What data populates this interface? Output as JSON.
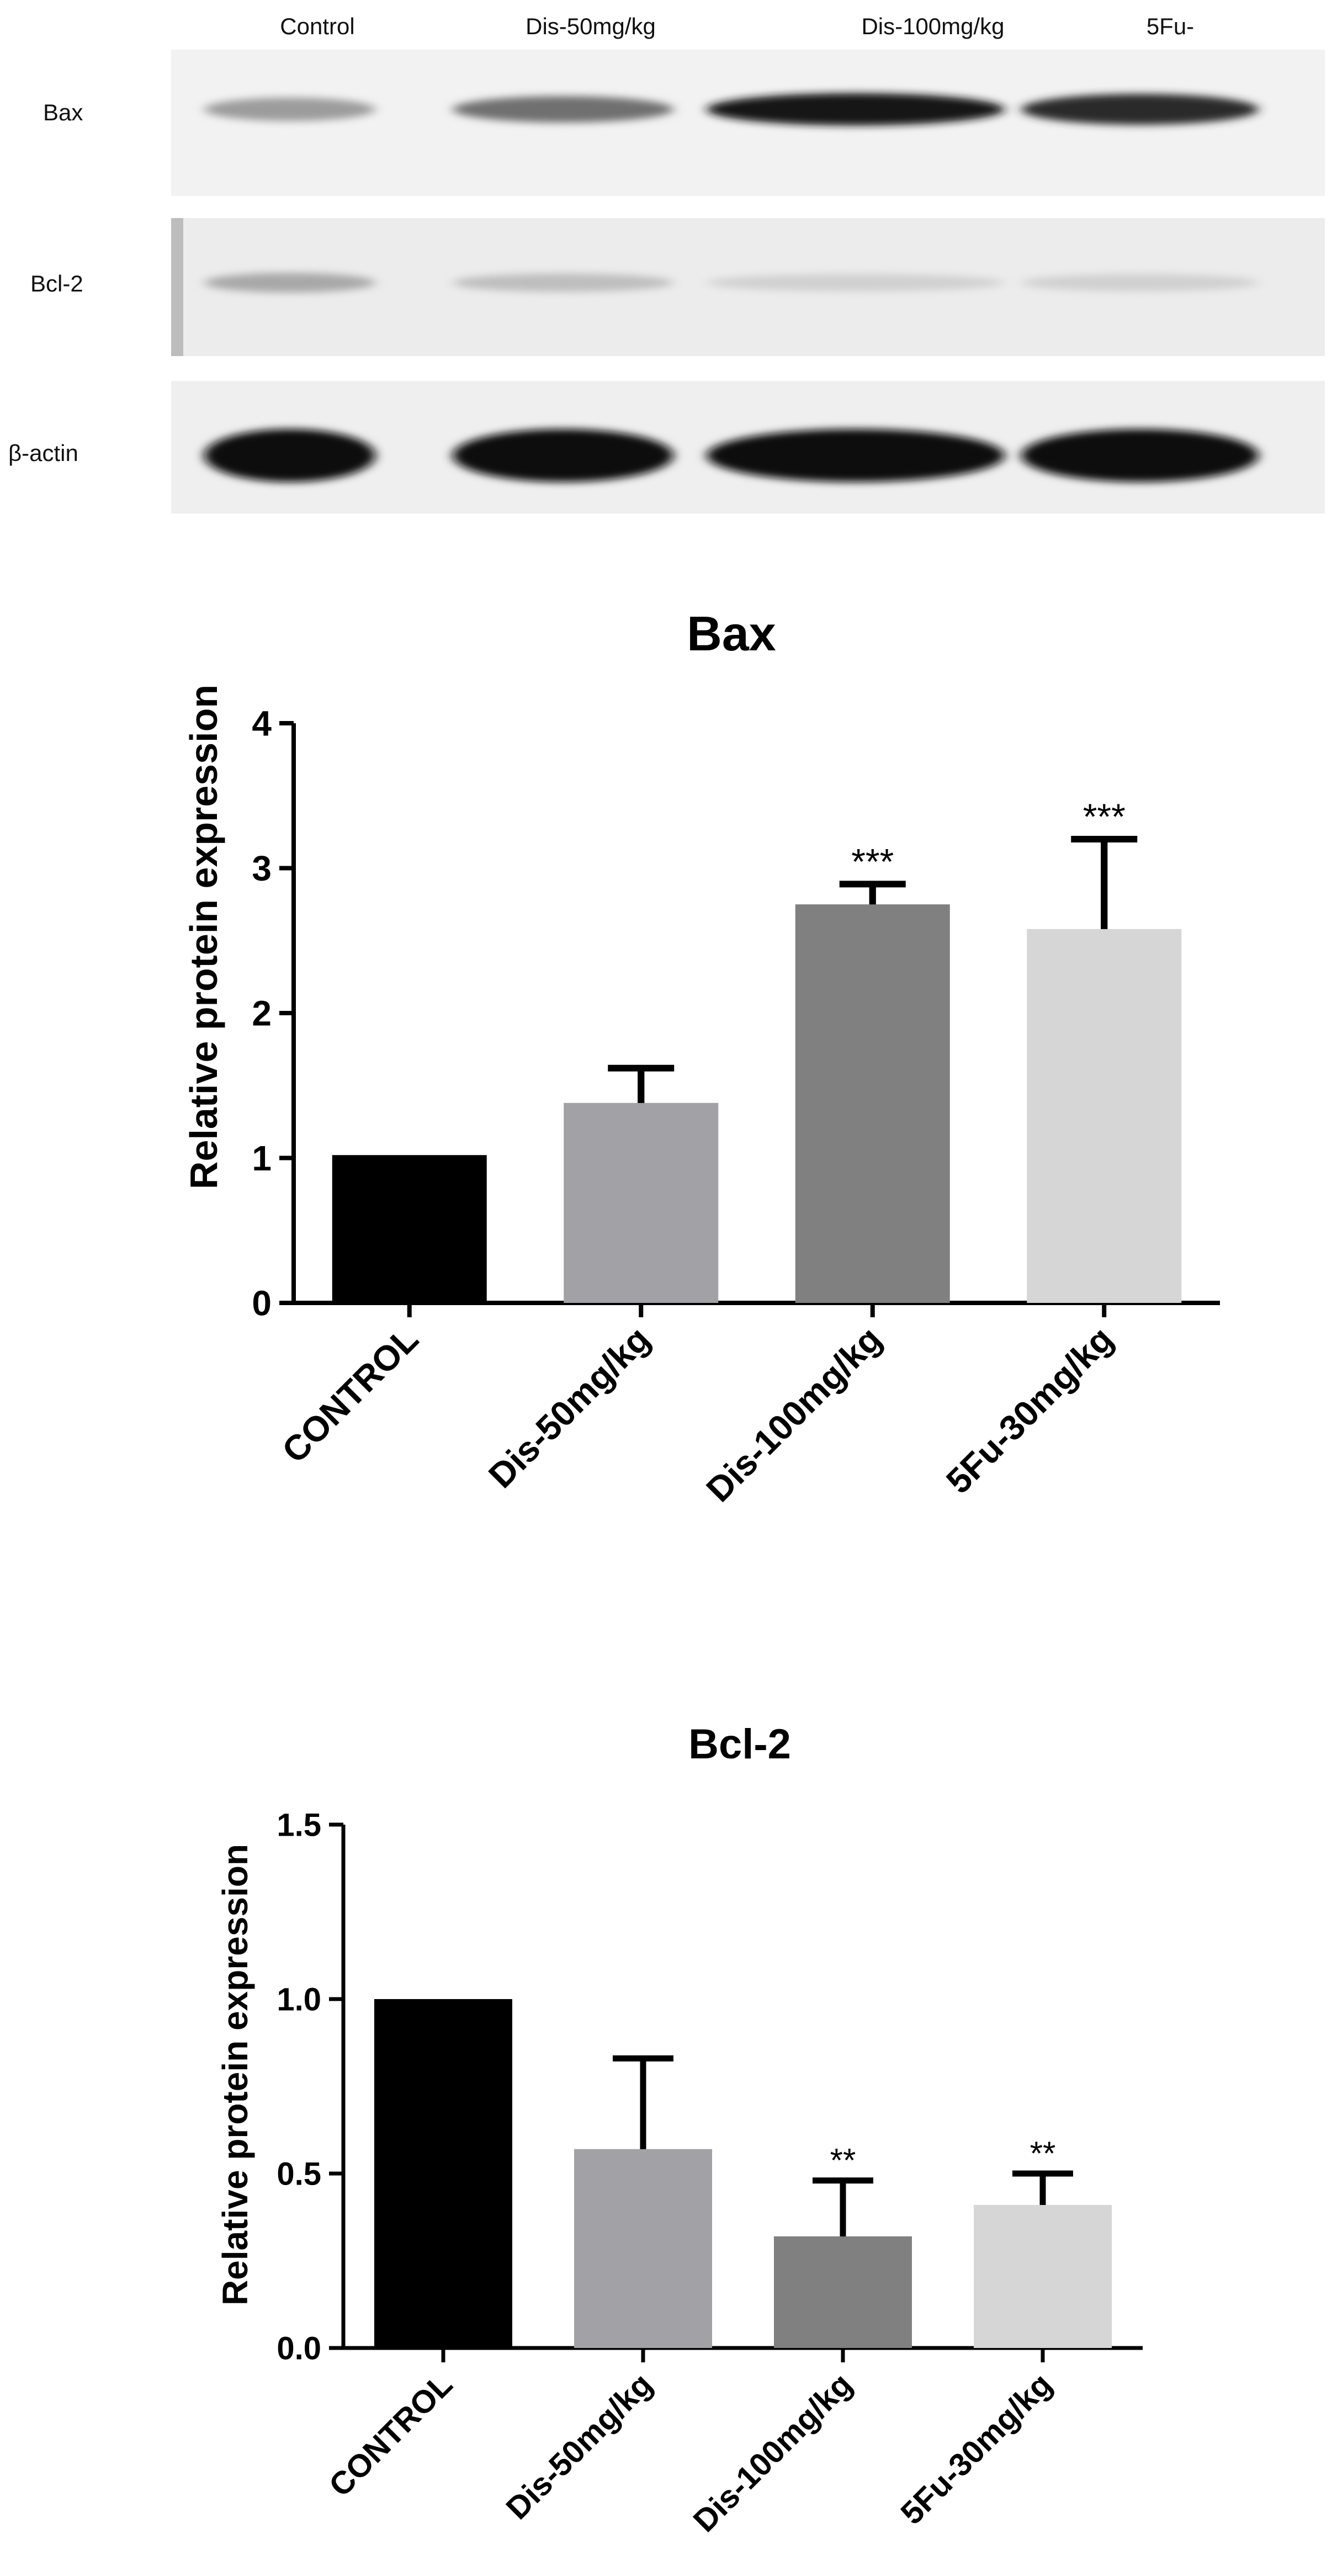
{
  "blot": {
    "lanes": [
      "Control",
      "Dis-50mg/kg",
      "Dis-100mg/kg",
      "5Fu-"
    ],
    "rows": [
      {
        "label": "Bax",
        "band_intensity": [
          0.35,
          0.55,
          0.95,
          0.85
        ],
        "background": "#f2f2f2"
      },
      {
        "label": "Bcl-2",
        "band_intensity": [
          0.3,
          0.2,
          0.12,
          0.12
        ],
        "background": "#ececec"
      },
      {
        "label": "β-actin",
        "band_intensity": [
          1.0,
          1.0,
          1.0,
          1.0
        ],
        "background": "#efefef"
      }
    ]
  },
  "chart_data": [
    {
      "type": "bar",
      "title": "Bax",
      "xlabel": "",
      "ylabel": "Relative protein expression",
      "ylim": [
        0,
        4
      ],
      "yticks": [
        "0",
        "1",
        "2",
        "3",
        "4"
      ],
      "categories": [
        "CONTROL",
        "Dis-50mg/kg",
        "Dis-100mg/kg",
        "5Fu-30mg/kg"
      ],
      "values": [
        1.02,
        1.38,
        2.75,
        2.58
      ],
      "errors": [
        0,
        0.24,
        0.14,
        0.62
      ],
      "significance": [
        "",
        "",
        "***",
        "***"
      ],
      "colors": [
        "#000000",
        "#a2a2a6",
        "#808080",
        "#d6d6d6"
      ],
      "grid": false
    },
    {
      "type": "bar",
      "title": "Bcl-2",
      "xlabel": "",
      "ylabel": "Relative protein expression",
      "ylim": [
        0,
        1.5
      ],
      "yticks": [
        "0.0",
        "0.5",
        "1.0",
        "1.5"
      ],
      "categories": [
        "CONTROL",
        "Dis-50mg/kg",
        "Dis-100mg/kg",
        "5Fu-30mg/kg"
      ],
      "values": [
        1.0,
        0.57,
        0.32,
        0.41
      ],
      "errors": [
        0,
        0.26,
        0.16,
        0.09
      ],
      "significance": [
        "",
        "",
        "**",
        "**"
      ],
      "colors": [
        "#000000",
        "#a2a2a6",
        "#808080",
        "#d6d6d6"
      ],
      "grid": false
    }
  ]
}
